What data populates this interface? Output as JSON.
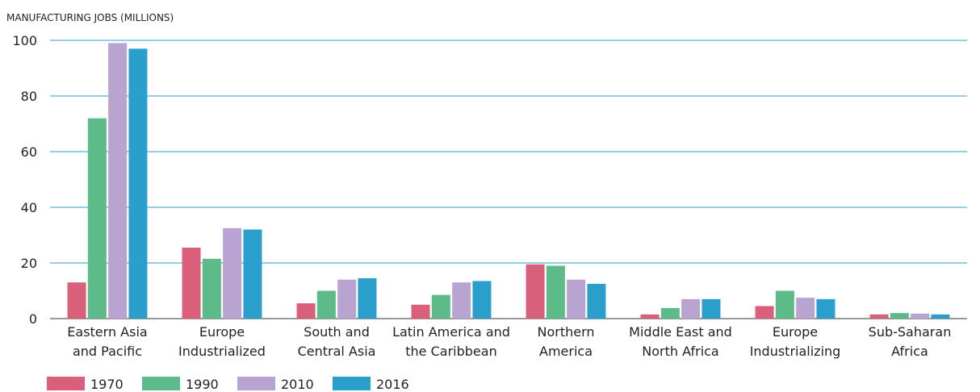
{
  "chart_data": {
    "type": "bar",
    "title": "MANUFACTURING JOBS (MILLIONS)",
    "categories": [
      "Eastern Asia\nand Pacific",
      "Europe\nIndustrialized",
      "South and\nCentral Asia",
      "Latin America and\nthe Caribbean",
      "Northern\nAmerica",
      "Middle East and\nNorth Africa",
      "Europe\nIndustrializing",
      "Sub-Saharan\nAfrica"
    ],
    "series": [
      {
        "name": "1970",
        "color": "#d95f7a",
        "values": [
          13,
          25.5,
          5.5,
          5,
          19.5,
          1.5,
          4.5,
          1.5
        ]
      },
      {
        "name": "1990",
        "color": "#5dbb8a",
        "values": [
          72,
          21.5,
          10,
          8.5,
          19,
          3.8,
          10,
          2
        ]
      },
      {
        "name": "2010",
        "color": "#b9a3d1",
        "values": [
          99,
          32.5,
          14,
          13,
          14,
          7,
          7.5,
          1.8
        ]
      },
      {
        "name": "2016",
        "color": "#2a9fcc",
        "values": [
          97,
          32,
          14.5,
          13.5,
          12.5,
          7,
          7,
          1.5
        ]
      }
    ],
    "ylim": [
      0,
      100
    ],
    "yticks": [
      0,
      20,
      40,
      60,
      80,
      100
    ],
    "grid": true,
    "legend": "bottom"
  }
}
